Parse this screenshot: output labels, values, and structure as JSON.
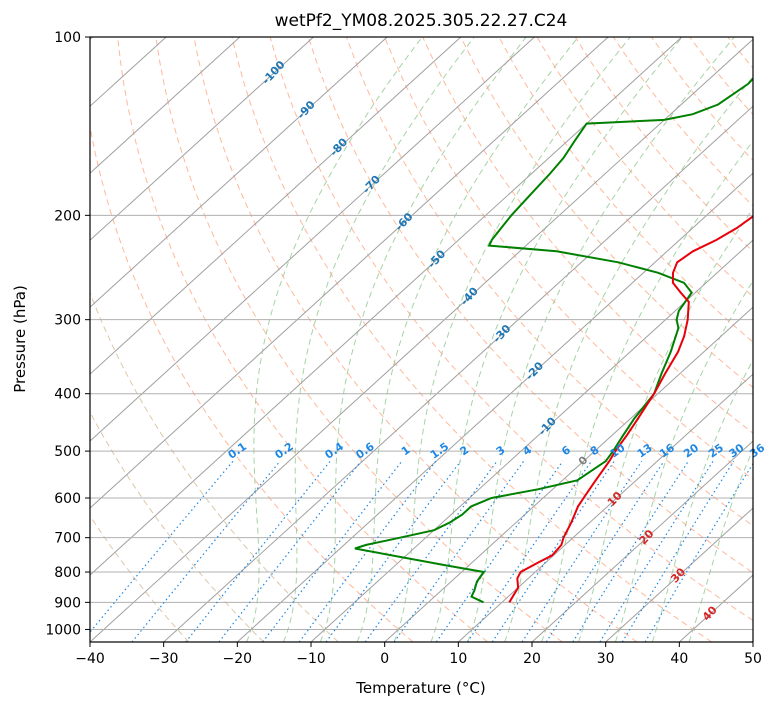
{
  "chart_data": {
    "type": "line",
    "subtype": "skew-T log-P diagram",
    "title": "wetPf2_YM08.2025.305.22.27.C24",
    "xlabel": "Temperature (°C)",
    "ylabel": "Pressure (hPa)",
    "xlim": [
      -40,
      50
    ],
    "ylim": [
      1050,
      100
    ],
    "y_scale": "log",
    "grid": true,
    "x_ticks": [
      -40,
      -30,
      -20,
      -10,
      0,
      10,
      20,
      30,
      40,
      50
    ],
    "y_ticks": [
      100,
      200,
      300,
      400,
      500,
      600,
      700,
      800,
      900,
      1000
    ],
    "x_tick_labels": [
      "−40",
      "−30",
      "−20",
      "−10",
      "0",
      "10",
      "20",
      "30",
      "40",
      "50"
    ],
    "y_tick_labels": [
      "100",
      "200",
      "300",
      "400",
      "500",
      "600",
      "700",
      "800",
      "900",
      "1000"
    ],
    "series": [
      {
        "role": "temperature",
        "color": "#e8000b",
        "points": [
          [
            11.0,
            900
          ],
          [
            10.0,
            850
          ],
          [
            8.5,
            820
          ],
          [
            8.0,
            800
          ],
          [
            9.0,
            770
          ],
          [
            9.8,
            750
          ],
          [
            9.5,
            720
          ],
          [
            8.7,
            700
          ],
          [
            7.5,
            660
          ],
          [
            6.0,
            620
          ],
          [
            5.5,
            600
          ],
          [
            5.0,
            580
          ],
          [
            4.5,
            560
          ],
          [
            3.5,
            520
          ],
          [
            2.8,
            500
          ],
          [
            2.0,
            470
          ],
          [
            1.0,
            440
          ],
          [
            -0.5,
            400
          ],
          [
            -2.0,
            370
          ],
          [
            -3.5,
            340
          ],
          [
            -5.0,
            320
          ],
          [
            -7.0,
            300
          ],
          [
            -9.5,
            280
          ],
          [
            -12.0,
            270
          ],
          [
            -14.5,
            260
          ],
          [
            -16.0,
            250
          ],
          [
            -17.0,
            240
          ],
          [
            -16.5,
            230
          ],
          [
            -15.0,
            220
          ],
          [
            -14.0,
            210
          ],
          [
            -13.5,
            200
          ],
          [
            -14.0,
            190
          ],
          [
            -15.5,
            180
          ],
          [
            -18.0,
            170
          ],
          [
            -20.5,
            160
          ],
          [
            -22.5,
            150
          ],
          [
            -24.0,
            140
          ],
          [
            -25.5,
            130
          ],
          [
            -27.5,
            120
          ],
          [
            -29.0,
            110
          ],
          [
            -30.5,
            100
          ]
        ]
      },
      {
        "role": "dewpoint",
        "color": "#008000",
        "points": [
          [
            7.5,
            900
          ],
          [
            5.0,
            880
          ],
          [
            4.5,
            860
          ],
          [
            3.5,
            830
          ],
          [
            3.0,
            800
          ],
          [
            -3.0,
            780
          ],
          [
            -18.0,
            730
          ],
          [
            -17.0,
            720
          ],
          [
            -13.5,
            700
          ],
          [
            -10.0,
            680
          ],
          [
            -9.0,
            660
          ],
          [
            -8.5,
            640
          ],
          [
            -8.5,
            620
          ],
          [
            -7.0,
            600
          ],
          [
            -2.0,
            580
          ],
          [
            2.0,
            560
          ],
          [
            3.0,
            520
          ],
          [
            2.5,
            500
          ],
          [
            1.5,
            470
          ],
          [
            0.5,
            440
          ],
          [
            -0.5,
            400
          ],
          [
            -2.5,
            370
          ],
          [
            -4.5,
            340
          ],
          [
            -7.0,
            310
          ],
          [
            -8.5,
            300
          ],
          [
            -9.5,
            290
          ],
          [
            -10.5,
            270
          ],
          [
            -13.0,
            260
          ],
          [
            -18.0,
            250
          ],
          [
            -25.0,
            240
          ],
          [
            -35.0,
            230
          ],
          [
            -45.0,
            225
          ],
          [
            -45.5,
            220
          ],
          [
            -46.0,
            210
          ],
          [
            -46.5,
            200
          ],
          [
            -47.0,
            185
          ],
          [
            -47.5,
            170
          ],
          [
            -48.0,
            160
          ],
          [
            -49.0,
            150
          ],
          [
            -50.0,
            140
          ],
          [
            -40.0,
            138
          ],
          [
            -37.0,
            135
          ],
          [
            -35.0,
            130
          ],
          [
            -34.0,
            120
          ],
          [
            -34.5,
            110
          ],
          [
            -36.0,
            100
          ]
        ]
      }
    ],
    "isotherm_labels": [
      "-100",
      "-90",
      "-80",
      "-70",
      "-60",
      "-50",
      "-40",
      "-30",
      "-20",
      "-10",
      "0",
      "10",
      "20",
      "30",
      "40"
    ],
    "isotherm_label_values": [
      -100,
      -90,
      -80,
      -70,
      -60,
      -50,
      -40,
      -30,
      -20,
      -10,
      0,
      10,
      20,
      30,
      40
    ],
    "mixing_ratio_labels": [
      "0.1",
      "0.2",
      "0.4",
      "0.6",
      "1",
      "1.5",
      "2",
      "3",
      "4",
      "6",
      "8",
      "10",
      "13",
      "16",
      "20",
      "25",
      "30",
      "36"
    ],
    "mixing_ratio_values": [
      0.1,
      0.2,
      0.4,
      0.6,
      1,
      1.5,
      2,
      3,
      4,
      6,
      8,
      10,
      13,
      16,
      20,
      25,
      30,
      36
    ],
    "colors": {
      "isotherm_cold": "#1f77b4",
      "isotherm_zero": "#808080",
      "isotherm_warm": "#d62728",
      "mixing_ratio": "#1e88e5",
      "dry_adiabat": "#d2b48c",
      "moist_adiabat": "#90c890",
      "skewed_isotherm_line": "#a0a0a0",
      "dashed_red": "#ffa07a",
      "grid": "#b0b0b0"
    }
  }
}
